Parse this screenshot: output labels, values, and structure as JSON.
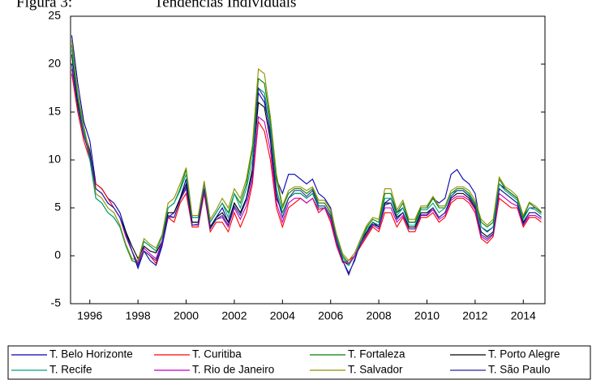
{
  "chart_data": {
    "type": "line",
    "title": "Figura 3:",
    "subtitle": "Tendências Individuais",
    "x": [
      1995.25,
      1995.5,
      1995.75,
      1996,
      1996.25,
      1996.5,
      1996.75,
      1997,
      1997.25,
      1997.5,
      1997.75,
      1998,
      1998.25,
      1998.5,
      1998.75,
      1999,
      1999.25,
      1999.5,
      1999.75,
      2000,
      2000.25,
      2000.5,
      2000.75,
      2001,
      2001.25,
      2001.5,
      2001.75,
      2002,
      2002.25,
      2002.5,
      2002.75,
      2003,
      2003.25,
      2003.5,
      2003.75,
      2004,
      2004.25,
      2004.5,
      2004.75,
      2005,
      2005.25,
      2005.5,
      2005.75,
      2006,
      2006.25,
      2006.5,
      2006.75,
      2007,
      2007.25,
      2007.5,
      2007.75,
      2008,
      2008.25,
      2008.5,
      2008.75,
      2009,
      2009.25,
      2009.5,
      2009.75,
      2010,
      2010.25,
      2010.5,
      2010.75,
      2011,
      2011.25,
      2011.5,
      2011.75,
      2012,
      2012.25,
      2012.5,
      2012.75,
      2013,
      2013.25,
      2013.5,
      2013.75,
      2014,
      2014.25,
      2014.5,
      2014.75
    ],
    "xlim": [
      1995.2,
      2014.9
    ],
    "xticks": [
      1996,
      1998,
      2000,
      2002,
      2004,
      2006,
      2008,
      2010,
      2012,
      2014
    ],
    "ylim": [
      -5,
      25
    ],
    "yticks": [
      -5,
      0,
      5,
      10,
      15,
      20,
      25
    ],
    "series": [
      {
        "name": "T. Belo Horizonte",
        "color": "#0000b0",
        "values": [
          23,
          18,
          14,
          12,
          7.5,
          7,
          6,
          5.5,
          4.5,
          2.5,
          0.5,
          -1.3,
          0.5,
          -0.5,
          -1,
          1,
          4,
          4.5,
          6,
          8,
          3.5,
          3.5,
          7.5,
          3,
          4,
          5,
          3.5,
          5.5,
          4.5,
          6,
          9,
          17,
          16,
          13,
          8,
          6.5,
          8.5,
          8.5,
          8,
          7.5,
          8,
          6.5,
          6,
          5,
          2,
          -0.5,
          -1.8,
          -0.5,
          1.5,
          2.5,
          3.5,
          3,
          5.5,
          6,
          4.5,
          5,
          3.5,
          3.5,
          5,
          5,
          6,
          5.5,
          6,
          8.5,
          9,
          8,
          7.5,
          6.5,
          3,
          2.5,
          3,
          7.5,
          7,
          6.5,
          6,
          4,
          5,
          5,
          4.5
        ]
      },
      {
        "name": "T. Curitiba",
        "color": "#ff0000",
        "values": [
          19,
          15,
          12,
          10,
          7.5,
          7,
          6,
          5,
          4,
          2,
          0.5,
          -1,
          0.5,
          0,
          -0.8,
          1.5,
          4,
          3.5,
          5.5,
          6.5,
          3,
          3,
          6.5,
          2.5,
          3.5,
          3.5,
          2.5,
          4.5,
          3,
          4.5,
          7.5,
          14,
          13,
          10,
          5,
          3,
          5,
          5.5,
          6,
          5.5,
          6,
          4.5,
          5,
          3.5,
          1,
          -0.7,
          -0.5,
          0,
          1,
          2,
          3,
          2.5,
          4.5,
          4.5,
          3,
          4,
          2.5,
          2.5,
          4,
          4,
          4.5,
          3.5,
          4,
          5.5,
          6,
          6,
          5.5,
          4.5,
          1.8,
          1.3,
          2,
          6,
          5.5,
          5,
          5,
          3,
          4,
          4,
          3.5
        ]
      },
      {
        "name": "T. Fortaleza",
        "color": "#008000",
        "values": [
          22,
          17,
          13.5,
          10.5,
          6,
          5.5,
          4.5,
          4,
          3,
          1,
          -0.5,
          -0.8,
          1.5,
          1,
          0.5,
          2,
          5,
          5.5,
          7,
          9,
          4,
          4,
          7.5,
          3.5,
          4.5,
          5.5,
          4.5,
          6.5,
          5.5,
          7.5,
          11,
          18.5,
          18,
          14,
          8,
          5,
          6.5,
          7,
          7,
          6.5,
          7,
          5.5,
          5.5,
          4.5,
          2,
          0,
          -0.8,
          0,
          1.5,
          3,
          3.8,
          3.5,
          6.5,
          6.5,
          4.5,
          5.5,
          3.5,
          3.5,
          5,
          5,
          6,
          5,
          5,
          6.5,
          7,
          7,
          6.5,
          5.5,
          3.5,
          3,
          3.5,
          8,
          7,
          6.5,
          6,
          4,
          5.5,
          5,
          4.5
        ]
      },
      {
        "name": "T. Porto Alegre",
        "color": "#000000",
        "values": [
          21,
          16,
          13,
          11,
          7,
          6.5,
          5.5,
          5,
          4,
          2.5,
          1,
          -0.3,
          1,
          0.5,
          0.3,
          1.5,
          4.5,
          4.5,
          6,
          7.5,
          3.5,
          3.5,
          7,
          3,
          4,
          4.5,
          3.5,
          5.5,
          4.5,
          6,
          9,
          16,
          15.5,
          12,
          6,
          4.5,
          6,
          6.5,
          6.5,
          6,
          6.5,
          5,
          5,
          4,
          1.5,
          -0.5,
          -1,
          0,
          1.5,
          2.5,
          3.5,
          3,
          5.5,
          5.5,
          4,
          4.5,
          3,
          3,
          4.5,
          4.5,
          5,
          4,
          4.5,
          6,
          6.5,
          6.5,
          6,
          5,
          2.5,
          2,
          2.5,
          7,
          6.5,
          6,
          5.5,
          3.5,
          4.5,
          4.5,
          4
        ]
      },
      {
        "name": "T. Recife",
        "color": "#00a080",
        "values": [
          21.5,
          16.5,
          13,
          10,
          6,
          5.5,
          4.5,
          4,
          3,
          1,
          -0.3,
          -0.5,
          1.5,
          1,
          0.5,
          2,
          5,
          5.5,
          6.8,
          8.5,
          4,
          4,
          7.5,
          3.5,
          4.5,
          5.5,
          4,
          6.5,
          5,
          7,
          10,
          17.5,
          17,
          13.5,
          7,
          4.5,
          6,
          6.5,
          6.5,
          6,
          6.5,
          5,
          5,
          4,
          1.8,
          -0.2,
          -1,
          0,
          1.5,
          2.8,
          3.5,
          3.2,
          6,
          6,
          4.2,
          5,
          3.2,
          3.2,
          4.8,
          4.8,
          5.5,
          4.5,
          5,
          6.5,
          6.8,
          6.8,
          6.3,
          5.3,
          3,
          2.6,
          3,
          7.5,
          6.8,
          6.3,
          5.8,
          3.8,
          5,
          4.8,
          4.3
        ]
      },
      {
        "name": "T. Rio de Janeiro",
        "color": "#c000c0",
        "values": [
          19.5,
          15.5,
          12.5,
          10.5,
          7,
          6.5,
          5.5,
          5,
          4,
          2,
          0.5,
          -0.8,
          0.8,
          0.2,
          -0.3,
          1.5,
          4,
          4,
          5.8,
          7,
          3.2,
          3.2,
          6.8,
          2.8,
          3.8,
          4,
          3,
          5,
          3.8,
          5.2,
          8,
          14.5,
          14,
          11,
          5.5,
          3.5,
          5.5,
          6,
          6,
          5.5,
          6,
          4.8,
          5,
          3.8,
          1.2,
          -0.6,
          -0.8,
          0,
          1.2,
          2.2,
          3.2,
          2.8,
          5,
          5,
          3.5,
          4.2,
          2.8,
          2.8,
          4.2,
          4.2,
          4.8,
          3.8,
          4.2,
          5.8,
          6.2,
          6.2,
          5.8,
          4.8,
          2,
          1.6,
          2.2,
          6.5,
          6,
          5.5,
          5.2,
          3.2,
          4.2,
          4.2,
          3.8
        ]
      },
      {
        "name": "T. Salvador",
        "color": "#909000",
        "values": [
          22.5,
          17,
          13.5,
          10.5,
          6.5,
          6,
          5,
          4.5,
          3.2,
          1.2,
          -0.3,
          -0.5,
          1.8,
          1.2,
          0.8,
          2.2,
          5.5,
          6,
          7.5,
          9.2,
          4.2,
          4.2,
          7.8,
          3.8,
          4.8,
          6,
          5,
          7,
          6,
          8,
          11.5,
          19.5,
          19,
          14.5,
          8.5,
          5.2,
          6.8,
          7.2,
          7.2,
          6.8,
          7.2,
          5.8,
          5.8,
          4.8,
          2.2,
          0.2,
          -0.5,
          0.3,
          1.8,
          3.2,
          4,
          3.8,
          7,
          7,
          4.8,
          5.8,
          3.8,
          3.8,
          5.2,
          5.2,
          6.2,
          5.2,
          5.2,
          6.8,
          7.2,
          7.2,
          6.8,
          5.8,
          3.8,
          3.2,
          3.8,
          8.2,
          7.2,
          6.8,
          6.2,
          4.2,
          5.6,
          5.2,
          4.6
        ]
      },
      {
        "name": "T. São Paulo",
        "color": "#2828a0",
        "values": [
          20,
          15.5,
          12.5,
          10.5,
          7,
          6.5,
          5.5,
          5,
          4,
          2.2,
          0.5,
          -1,
          0.5,
          0,
          -0.5,
          1.2,
          4.2,
          4,
          5.8,
          7.2,
          3.2,
          3.3,
          7,
          2.8,
          3.8,
          4.2,
          3.2,
          5.2,
          4.2,
          5.8,
          8.5,
          17.5,
          16.5,
          12.5,
          6.5,
          4,
          6,
          6.8,
          6.8,
          6.2,
          6.8,
          5.2,
          5.2,
          4.2,
          1.5,
          -0.5,
          -2,
          -0.3,
          1.3,
          2.3,
          3.3,
          3,
          5.3,
          5.5,
          3.8,
          4.5,
          2.8,
          2.8,
          4.3,
          4.3,
          5,
          4,
          4.5,
          6.2,
          6.8,
          6.8,
          6.2,
          5.2,
          2.2,
          1.8,
          2.3,
          7,
          6.5,
          6,
          5.5,
          3.3,
          4.5,
          4.5,
          4
        ]
      }
    ],
    "grid": false
  }
}
